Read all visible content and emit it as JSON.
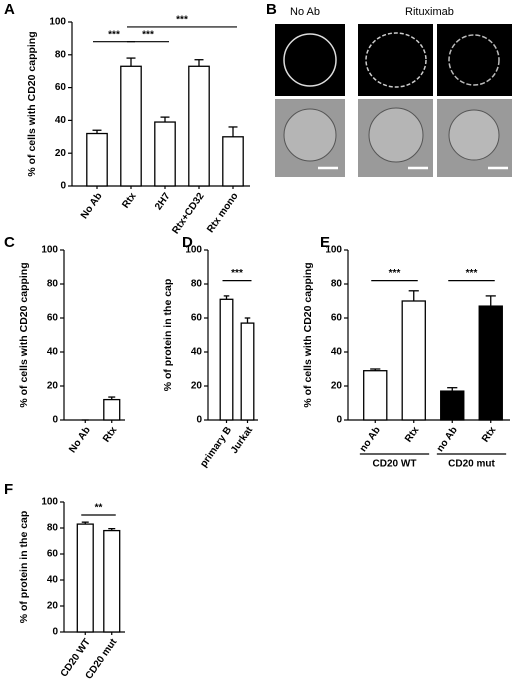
{
  "chart_data": [
    {
      "panel": "A",
      "type": "bar",
      "ylabel": "% of cells with CD20 capping",
      "categories": [
        "No Ab",
        "Rtx",
        "2H7",
        "Rtx+CD32",
        "Rtx mono"
      ],
      "values": [
        32,
        73,
        39,
        73,
        30
      ],
      "errors": [
        2,
        5,
        3,
        4,
        6
      ],
      "colors": [
        "#ffffff",
        "#ffffff",
        "#ffffff",
        "#ffffff",
        "#ffffff"
      ],
      "ylim": [
        0,
        100
      ],
      "yticks": [
        0,
        20,
        40,
        60,
        80,
        100
      ],
      "significance": [
        {
          "label": "***",
          "from": "No Ab",
          "to": "Rtx",
          "y": 88
        },
        {
          "label": "***",
          "from": "Rtx",
          "to": "2H7",
          "y": 88
        },
        {
          "label": "***",
          "from": "Rtx",
          "to": "Rtx mono",
          "y": 97
        }
      ]
    },
    {
      "panel": "C",
      "type": "bar",
      "ylabel": "% of cells with CD20 capping",
      "categories": [
        "No Ab",
        "Rtx"
      ],
      "values": [
        0,
        12
      ],
      "errors": [
        0,
        1.5
      ],
      "colors": [
        "#ffffff",
        "#ffffff"
      ],
      "ylim": [
        0,
        100
      ],
      "yticks": [
        0,
        20,
        40,
        60,
        80,
        100
      ],
      "significance": []
    },
    {
      "panel": "D",
      "type": "bar",
      "ylabel": "% of protein in the cap",
      "categories": [
        "primary B",
        "Jurkat"
      ],
      "values": [
        71,
        57
      ],
      "errors": [
        2,
        3
      ],
      "colors": [
        "#ffffff",
        "#ffffff"
      ],
      "ylim": [
        0,
        100
      ],
      "yticks": [
        0,
        20,
        40,
        60,
        80,
        100
      ],
      "significance": [
        {
          "label": "***",
          "from": "primary B",
          "to": "Jurkat",
          "y": 82
        }
      ]
    },
    {
      "panel": "E",
      "type": "bar",
      "ylabel": "% of cells with CD20 capping",
      "categories": [
        "no Ab",
        "Rtx",
        "no Ab",
        "Rtx"
      ],
      "values": [
        29,
        70,
        17,
        67
      ],
      "errors": [
        1,
        6,
        2,
        6
      ],
      "colors": [
        "#ffffff",
        "#ffffff",
        "#000000",
        "#000000"
      ],
      "groups": [
        "CD20 WT",
        "CD20 mut"
      ],
      "ylim": [
        0,
        100
      ],
      "yticks": [
        0,
        20,
        40,
        60,
        80,
        100
      ],
      "significance": [
        {
          "label": "***",
          "from": 0,
          "to": 1,
          "y": 82
        },
        {
          "label": "***",
          "from": 2,
          "to": 3,
          "y": 82
        }
      ]
    },
    {
      "panel": "F",
      "type": "bar",
      "ylabel": "% of protein in the cap",
      "categories": [
        "CD20 WT",
        "CD20 mut"
      ],
      "values": [
        83,
        78
      ],
      "errors": [
        1.5,
        1.5
      ],
      "colors": [
        "#ffffff",
        "#ffffff"
      ],
      "ylim": [
        0,
        100
      ],
      "yticks": [
        0,
        20,
        40,
        60,
        80,
        100
      ],
      "significance": [
        {
          "label": "**",
          "from": "CD20 WT",
          "to": "CD20 mut",
          "y": 90
        }
      ]
    }
  ],
  "image_panel": {
    "panel": "B",
    "labels": [
      "No Ab",
      "Rituximab"
    ]
  }
}
